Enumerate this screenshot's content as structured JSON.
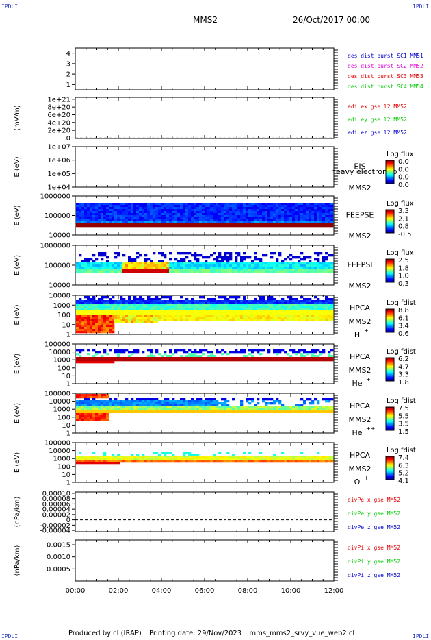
{
  "corner_label": "IPDLI",
  "header": {
    "spacecraft": "MMS2",
    "date": "26/Oct/2017 00:00"
  },
  "footer": {
    "produced_by": "Produced by cl (IRAP)",
    "printing_date": "Printing date: 29/Nov/2023",
    "script": "mms_mms2_srvy_vue_web2.cl"
  },
  "colors": {
    "blue": "#0000cc",
    "magenta": "#dd00dd",
    "red": "#e00000",
    "green": "#00cc00"
  },
  "chart_data": [
    {
      "type": "line",
      "panel": "burst",
      "yticks": [
        "4",
        "3",
        "2",
        "1"
      ],
      "yvalues": [
        4,
        3,
        2,
        1
      ],
      "ylim": [
        0.5,
        4.5
      ],
      "series": [
        {
          "name": "des dist burst SC1 MM51",
          "color": "#0000cc"
        },
        {
          "name": "des dist burst SC2 MM52",
          "color": "#dd00dd"
        },
        {
          "name": "des dist burst SC3 MM53",
          "color": "#e00000"
        },
        {
          "name": "des dist burst SC4 MM54",
          "color": "#00cc00"
        }
      ]
    },
    {
      "type": "line",
      "panel": "edi",
      "ylabel": "(mV/m)",
      "yticks": [
        "1e+21",
        "8e+20",
        "6e+20",
        "4e+20",
        "2e+20",
        "0"
      ],
      "yvalues": [
        1e+21,
        8e+20,
        6e+20,
        4e+20,
        2e+20,
        0
      ],
      "ylim": [
        -1e+19,
        1.05e+21
      ],
      "zero_line": 0,
      "series": [
        {
          "name": "edi ex gse l2 MM52",
          "color": "#e00000"
        },
        {
          "name": "edi ey gse l2 MM52",
          "color": "#00cc00"
        },
        {
          "name": "edi ez gse l2 MM52",
          "color": "#0000cc"
        }
      ]
    },
    {
      "type": "heatmap",
      "panel": "eis",
      "ylabel": "E (eV)",
      "yticks": [
        "1e+07",
        "1e+06",
        "1e+05",
        "1e+04"
      ],
      "log_ylim": [
        4,
        7
      ],
      "instrument": "EIS",
      "spacecraft": "MMS2",
      "overlay": "heavy electron to",
      "colorbar": {
        "label": "Log flux",
        "ticks": [
          "0.0",
          "0.0",
          "0.0",
          "0.0"
        ]
      }
    },
    {
      "type": "heatmap",
      "panel": "feepse",
      "ylabel": "E (eV)",
      "yticks": [
        "1000000",
        "100000",
        "10000"
      ],
      "log_ylim": [
        4,
        6
      ],
      "instrument": "FEEPSE",
      "spacecraft": "MMS2",
      "colorbar": {
        "label": "Log flux",
        "ticks": [
          "3.3",
          "2.1",
          "0.8",
          "-0.5"
        ]
      }
    },
    {
      "type": "heatmap",
      "panel": "feepsi",
      "ylabel": "E (eV)",
      "yticks": [
        "1000000",
        "100000",
        "10000"
      ],
      "log_ylim": [
        4,
        6
      ],
      "instrument": "FEEPSI",
      "spacecraft": "MMS2",
      "colorbar": {
        "label": "Log flux",
        "ticks": [
          "2.5",
          "1.8",
          "1.0",
          "0.3"
        ]
      }
    },
    {
      "type": "heatmap",
      "panel": "hpca_h",
      "ylabel": "E (eV)",
      "yticks": [
        "10000",
        "1000",
        "100",
        "10",
        "1"
      ],
      "log_ylim": [
        0,
        4.4
      ],
      "instrument": "HPCA",
      "spacecraft": "MMS2",
      "species": "H",
      "species_sup": "+",
      "colorbar": {
        "label": "Log fdist",
        "ticks": [
          "8.8",
          "6.1",
          "3.4",
          "0.6"
        ]
      }
    },
    {
      "type": "heatmap",
      "panel": "hpca_he",
      "ylabel": "E (eV)",
      "yticks": [
        "100000",
        "10000",
        "1000",
        "100",
        "10",
        "1"
      ],
      "log_ylim": [
        0,
        5
      ],
      "instrument": "HPCA",
      "spacecraft": "MMS2",
      "species": "He",
      "species_sup": "+",
      "colorbar": {
        "label": "Log fdist",
        "ticks": [
          "6.2",
          "4.7",
          "3.3",
          "1.8"
        ]
      }
    },
    {
      "type": "heatmap",
      "panel": "hpca_hepp",
      "ylabel": "E (eV)",
      "yticks": [
        "100000",
        "10000",
        "1000",
        "100",
        "10",
        "1"
      ],
      "log_ylim": [
        0,
        5
      ],
      "instrument": "HPCA",
      "spacecraft": "MMS2",
      "species": "He",
      "species_sup": "++",
      "colorbar": {
        "label": "Log fdist",
        "ticks": [
          "7.5",
          "5.5",
          "3.5",
          "1.5"
        ]
      }
    },
    {
      "type": "heatmap",
      "panel": "hpca_o",
      "ylabel": "E (eV)",
      "yticks": [
        "100000",
        "10000",
        "1000",
        "100",
        "10",
        "1"
      ],
      "log_ylim": [
        0,
        5
      ],
      "instrument": "HPCA",
      "spacecraft": "MMS2",
      "species": "O",
      "species_sup": "+",
      "colorbar": {
        "label": "Log fdist",
        "ticks": [
          "7.4",
          "6.3",
          "5.2",
          "4.1"
        ]
      }
    },
    {
      "type": "line",
      "panel": "divpe",
      "ylabel": "(nPa/km)",
      "yticks": [
        "0.00010",
        "0.00008",
        "0.00006",
        "0.00004",
        "0.00002",
        "0",
        "-0.00002",
        "-0.00004"
      ],
      "yvalues": [
        0.0001,
        8e-05,
        6e-05,
        4e-05,
        2e-05,
        0,
        -2e-05,
        -4e-05
      ],
      "ylim": [
        -4.5e-05,
        0.000105
      ],
      "zero_line": 0,
      "series": [
        {
          "name": "divPe x gse MM52",
          "color": "#e00000"
        },
        {
          "name": "divPe y gse MM52",
          "color": "#00cc00"
        },
        {
          "name": "divPe z gse MM52",
          "color": "#0000cc"
        }
      ]
    },
    {
      "type": "line",
      "panel": "divpi",
      "ylabel": "(nPa/km)",
      "yticks": [
        "0.0015",
        "0.0010",
        "0.0005"
      ],
      "yvalues": [
        0.0015,
        0.001,
        0.0005
      ],
      "ylim": [
        0.0,
        0.0017
      ],
      "series": [
        {
          "name": "divPi x gse MM52",
          "color": "#e00000"
        },
        {
          "name": "divPi y gse MM52",
          "color": "#00cc00"
        },
        {
          "name": "divPi z gse MM52",
          "color": "#0000cc"
        }
      ]
    }
  ],
  "xaxis": {
    "ticks": [
      "00:00",
      "02:00",
      "04:00",
      "06:00",
      "08:00",
      "10:00",
      "12:00"
    ],
    "xlim": [
      0,
      12
    ]
  }
}
